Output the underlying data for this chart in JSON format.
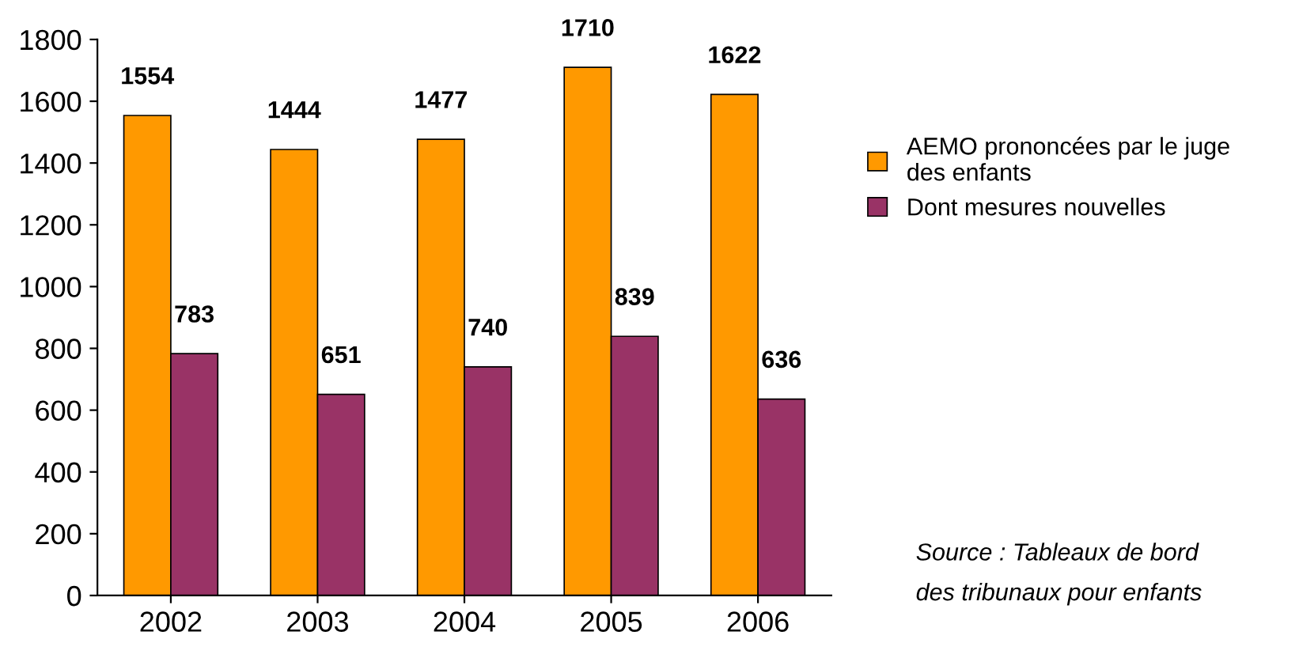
{
  "chart_data": {
    "type": "bar",
    "categories": [
      "2002",
      "2003",
      "2004",
      "2005",
      "2006"
    ],
    "series": [
      {
        "name": "AEMO prononcées par le juge\ndes enfants",
        "color": "#ff9900",
        "values": [
          1554,
          1444,
          1477,
          1710,
          1622
        ]
      },
      {
        "name": "Dont mesures nouvelles",
        "color": "#993366",
        "values": [
          783,
          651,
          740,
          839,
          636
        ]
      }
    ],
    "ylim": [
      0,
      1800
    ],
    "yticks": [
      0,
      200,
      400,
      600,
      800,
      1000,
      1200,
      1400,
      1600,
      1800
    ],
    "data_labels": true,
    "grid": false,
    "legend": "right",
    "annotations": [
      "Source : Tableaux de bord\ndes tribunaux pour enfants"
    ]
  }
}
